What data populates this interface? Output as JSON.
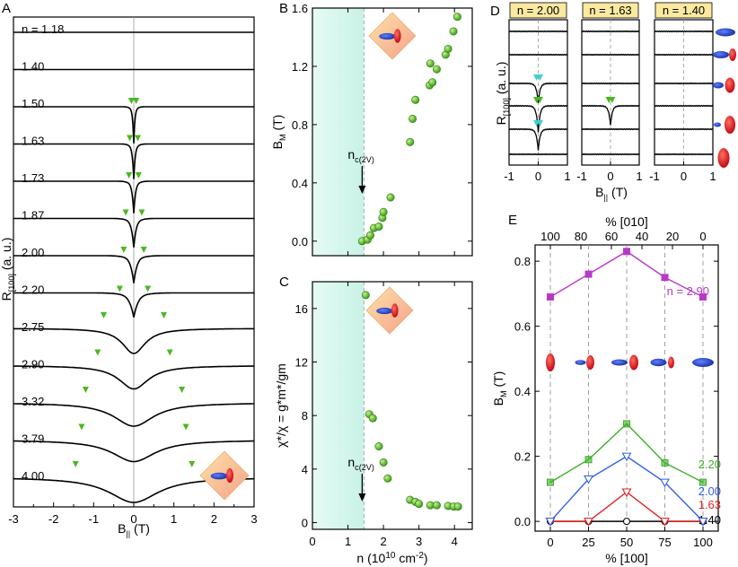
{
  "chart_data": [
    {
      "panel": "A",
      "type": "line",
      "title": "",
      "xlabel_main": "B",
      "xlabel_sub": "||",
      "xlabel_unit": "(T)",
      "ylabel_main": "R",
      "ylabel_sub": "[100]",
      "ylabel_unit": "(a. u.)",
      "xlim": [
        -3,
        3
      ],
      "xticks": [
        "-3",
        "-2",
        "-1",
        "0",
        "1",
        "2",
        "3"
      ],
      "xtick_values": [
        -3,
        -2,
        -1,
        0,
        1,
        2,
        3
      ],
      "series": [
        {
          "label": "n = 1.18",
          "depth": 0,
          "width": 0.03,
          "peaks": []
        },
        {
          "label": "1.40",
          "depth": 0,
          "width": 0.03,
          "peaks": []
        },
        {
          "label": "1.50",
          "depth": 48,
          "width": 0.035,
          "peaks": [
            -0.06,
            0.06
          ]
        },
        {
          "label": "1.63",
          "depth": 46,
          "width": 0.045,
          "peaks": [
            -0.1,
            0.1
          ]
        },
        {
          "label": "1.73",
          "depth": 42,
          "width": 0.055,
          "peaks": [
            -0.12,
            0.12
          ]
        },
        {
          "label": "1.87",
          "depth": 38,
          "width": 0.075,
          "peaks": [
            -0.2,
            0.2
          ]
        },
        {
          "label": "2.00",
          "depth": 36,
          "width": 0.1,
          "peaks": [
            -0.25,
            0.25
          ]
        },
        {
          "label": "2.20",
          "depth": 32,
          "width": 0.14,
          "peaks": [
            -0.35,
            0.35
          ]
        },
        {
          "label": "2.75",
          "depth": 28,
          "width": 0.35,
          "peaks": [
            -0.75,
            0.75
          ]
        },
        {
          "label": "2.90",
          "depth": 26,
          "width": 0.45,
          "peaks": [
            -0.9,
            0.9
          ]
        },
        {
          "label": "3.32",
          "depth": 26,
          "width": 0.6,
          "peaks": [
            -1.2,
            1.2
          ]
        },
        {
          "label": "3.79",
          "depth": 24,
          "width": 0.65,
          "peaks": [
            -1.3,
            1.3
          ]
        },
        {
          "label": "4.00",
          "depth": 28,
          "width": 0.75,
          "peaks": [
            -1.45,
            1.45
          ]
        }
      ]
    },
    {
      "panel": "B",
      "type": "scatter",
      "xlabel": "",
      "ylabel_main": "B",
      "ylabel_sub": "M",
      "ylabel_unit": "(T)",
      "xlim": [
        0,
        4.5
      ],
      "ylim": [
        -0.1,
        1.6
      ],
      "yticks": [
        "0.0",
        "0.4",
        "0.8",
        "1.2",
        "1.6"
      ],
      "ytick_values": [
        0,
        0.4,
        0.8,
        1.2,
        1.6
      ],
      "shaded_region": [
        0,
        1.45
      ],
      "annotation_main": "n",
      "annotation_sub": "c(2V)",
      "annotation_x": 1.4,
      "points": [
        [
          1.4,
          0.0
        ],
        [
          1.55,
          0.01
        ],
        [
          1.63,
          0.04
        ],
        [
          1.73,
          0.09
        ],
        [
          1.87,
          0.1
        ],
        [
          1.97,
          0.16
        ],
        [
          2.0,
          0.2
        ],
        [
          2.2,
          0.3
        ],
        [
          2.75,
          0.68
        ],
        [
          2.82,
          0.84
        ],
        [
          2.9,
          0.97
        ],
        [
          3.3,
          1.07
        ],
        [
          3.38,
          1.09
        ],
        [
          3.5,
          1.18
        ],
        [
          3.32,
          1.22
        ],
        [
          3.75,
          1.28
        ],
        [
          3.82,
          1.32
        ],
        [
          3.97,
          1.44
        ],
        [
          4.08,
          1.54
        ]
      ]
    },
    {
      "panel": "C",
      "type": "scatter",
      "xlabel": "n (10",
      "xlabel_exp": "10",
      "xlabel_unit": "cm",
      "xlabel_unit_exp": "-2",
      "xlabel_close": ")",
      "ylabel": "χ*/χ = g*m*/gm",
      "xlim": [
        0,
        4.5
      ],
      "ylim": [
        -0.5,
        18
      ],
      "xticks": [
        "0",
        "1",
        "2",
        "3",
        "4"
      ],
      "xtick_values": [
        0,
        1,
        2,
        3,
        4
      ],
      "yticks": [
        "0",
        "4",
        "8",
        "12",
        "16"
      ],
      "ytick_values": [
        0,
        4,
        8,
        12,
        16
      ],
      "shaded_region": [
        0,
        1.45
      ],
      "annotation_main": "n",
      "annotation_sub": "c(2V)",
      "annotation_x": 1.4,
      "points": [
        [
          1.5,
          17.0
        ],
        [
          1.6,
          8.1
        ],
        [
          1.7,
          7.8
        ],
        [
          1.87,
          5.7
        ],
        [
          2.0,
          4.5
        ],
        [
          2.12,
          3.3
        ],
        [
          2.75,
          1.7
        ],
        [
          2.9,
          1.55
        ],
        [
          3.0,
          1.4
        ],
        [
          3.32,
          1.3
        ],
        [
          3.5,
          1.3
        ],
        [
          3.82,
          1.25
        ],
        [
          3.98,
          1.2
        ],
        [
          4.1,
          1.2
        ]
      ]
    },
    {
      "panel": "D",
      "type": "line",
      "xlabel_main": "B",
      "xlabel_sub": "||",
      "xlabel_unit": "(T)",
      "ylabel_main": "R",
      "ylabel_sub": "[100]",
      "ylabel_unit": "(a. u.)",
      "xticks": [
        "-1",
        "0",
        "1"
      ],
      "xtick_values": [
        -1,
        0,
        1
      ],
      "subpanels": [
        {
          "n_label": "n = 2.00",
          "depths": [
            0,
            0,
            22,
            30,
            24,
            0
          ]
        },
        {
          "n_label": "n = 1.63",
          "depths": [
            0,
            0,
            0,
            22,
            0,
            0
          ]
        },
        {
          "n_label": "n = 1.40",
          "depths": [
            0,
            0,
            0,
            0,
            0,
            0
          ]
        }
      ]
    },
    {
      "panel": "E",
      "type": "line",
      "xlabel": "% [100]",
      "top_xlabel": "% [010]",
      "ylabel_main": "B",
      "ylabel_sub": "M",
      "ylabel_unit": "(T)",
      "xlim": [
        -10,
        110
      ],
      "ylim": [
        -0.03,
        0.85
      ],
      "xticks": [
        "0",
        "25",
        "50",
        "75",
        "100"
      ],
      "xtick_values": [
        0,
        25,
        50,
        75,
        100
      ],
      "top_xticks": [
        "100",
        "80",
        "60",
        "40",
        "20",
        "0"
      ],
      "top_xtick_values": [
        100,
        80,
        60,
        40,
        20,
        0
      ],
      "yticks": [
        "0.0",
        "0.2",
        "0.4",
        "0.6",
        "0.8"
      ],
      "ytick_values": [
        0,
        0.2,
        0.4,
        0.6,
        0.8
      ],
      "x": [
        0,
        25,
        50,
        75,
        100
      ],
      "series": [
        {
          "name": "n = 2.90",
          "color": "#b838c8",
          "marker": "square",
          "values": [
            0.69,
            0.76,
            0.83,
            0.75,
            0.69
          ]
        },
        {
          "name": "2.20",
          "color": "#3cb028",
          "marker": "square-open",
          "values": [
            0.12,
            0.19,
            0.3,
            0.18,
            0.12
          ]
        },
        {
          "name": "2.00",
          "color": "#3060e8",
          "marker": "triangle-open",
          "values": [
            0.0,
            0.13,
            0.2,
            0.12,
            0.0
          ]
        },
        {
          "name": "1.63",
          "color": "#e02020",
          "marker": "triangle-open",
          "values": [
            0.0,
            0.0,
            0.09,
            0.0,
            0.0
          ]
        },
        {
          "name": "1.40",
          "color": "#000000",
          "marker": "circle-open",
          "values": [
            0.0,
            0.0,
            0.0,
            0.0,
            0.0
          ]
        }
      ]
    }
  ],
  "panel_letters": [
    "A",
    "B",
    "C",
    "D",
    "E"
  ],
  "colors": {
    "green_marker": "#4ab820",
    "cyan_marker": "#40d0d0",
    "shade": "#d8f7ef",
    "label_box": "#fbe9a0",
    "blue_ellipse": "#2040c0",
    "red_ellipse": "#e02020"
  }
}
